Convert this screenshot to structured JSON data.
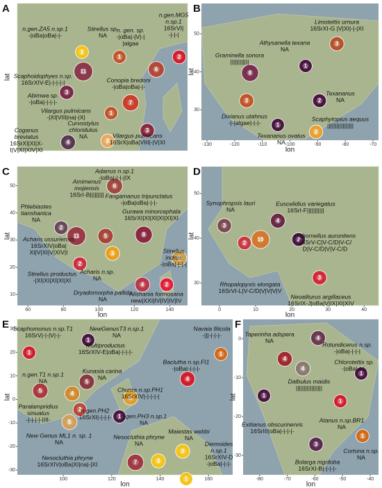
{
  "panels": [
    {
      "letter": "A",
      "y_label": "lat",
      "labels": [
        [
          "n.gen.ZA5 n.sp.1",
          "-|oBa|oBa|-|-"
        ],
        [
          "Stirellus sp.",
          "NA"
        ],
        [
          "n. gen. sp.",
          "-|oBa|-|V|-|",
          "|algae"
        ],
        [
          "n.gen.MG5",
          "n.sp.1",
          "16SrVI|",
          "-|-|-|"
        ],
        [
          "Scaphoidophyes n.sp.",
          "16SrXIV-E|-|-|-|-|"
        ],
        [
          "Conopia bredoni",
          "-|oBa|oBa|-|-"
        ],
        [
          "Abimwa sp.",
          "-|oBa|-|-|-|-"
        ],
        [
          "Vilargus pulmicans",
          "-|XI|VIII|na|-|X|"
        ],
        [
          "Curvostylus",
          "chloridulus",
          "NA"
        ],
        [
          "Coganus",
          "breviatus",
          "16SrXI|XI|X-",
          "I|V|XI|XIV|XI"
        ],
        [
          "Vilargus pulmicans",
          "16SrX|oBa|VIII|-|V|XI"
        ]
      ],
      "pies": [
        {
          "n": 1,
          "color": "#f3c51c"
        },
        {
          "n": 1,
          "color": "#c0552a"
        },
        {
          "n": 2,
          "color": "#d11f2e"
        },
        {
          "n": 11,
          "color": "#8a3a4a"
        },
        {
          "n": 6,
          "color": "#b24a3a"
        },
        {
          "n": 3,
          "color": "#7b2a4a"
        },
        {
          "n": 7,
          "color": "#c8402e"
        },
        {
          "n": 1,
          "color": "#c0552a"
        },
        {
          "n": 2,
          "color": "#e8a860"
        },
        {
          "n": 4,
          "color": "#5a3a50"
        },
        {
          "n": 3,
          "color": "#8a2a40"
        }
      ]
    },
    {
      "letter": "B",
      "x_label": "lon",
      "y_label": "lat",
      "xlim": [
        -132,
        -68
      ],
      "ylim": [
        22,
        58
      ],
      "xticks": [
        -130,
        -120,
        -110,
        -100,
        -90,
        -80,
        -70
      ],
      "yticks": [
        30,
        40,
        50
      ],
      "labels": [
        [
          "Limotettix urnura",
          "16SrXI-G |V|XI|-|-|XI"
        ],
        [
          "Athysanella texana",
          "NA"
        ],
        [
          "Graminella sonora",
          "||||||||||||"
        ],
        [
          "Texananus",
          "NA"
        ],
        [
          "Dixianus utahnus",
          "-|-|algae|-|-|-"
        ],
        [
          "Scaphytopius aequus",
          "|||||||||||||||||"
        ],
        [
          "Texananus ovatus",
          "NA"
        ]
      ],
      "pies": [
        {
          "n": 3,
          "color": "#b5532a"
        },
        {
          "n": 8,
          "color": "#7a3050"
        },
        {
          "n": 1,
          "color": "#4a1540"
        },
        {
          "n": 3,
          "color": "#c0552a"
        },
        {
          "n": 2,
          "color": "#4a1540"
        },
        {
          "n": 1,
          "color": "#4a1540"
        },
        {
          "n": 2,
          "color": "#e8a030"
        }
      ]
    },
    {
      "letter": "C",
      "x_label": "lon",
      "y_label": "lat",
      "xlim": [
        54,
        150
      ],
      "ylim": [
        6,
        57
      ],
      "xticks": [
        60,
        80,
        100,
        120,
        140
      ],
      "yticks": [
        10,
        20,
        30,
        40,
        50
      ],
      "labels": [
        [
          "Adarrus n.sp.1",
          "-|oBa|-|-|-|IX"
        ],
        [
          "Amimenus",
          "mojiensis",
          "16SrI-B|||||||||"
        ],
        [
          "Fangamanus tripunctatus",
          "-|oBa|oBa|-|-|-"
        ],
        [
          "Phlebiastes",
          "tianshanica",
          "NA"
        ],
        [
          "Gurawa minorcephala",
          "16SrXI|XI|XI|XI|XI|XI"
        ],
        [
          "Acharis ussuriensis",
          "16SrXIV|oBa|",
          "XI|V|XI|V|XIV|I"
        ],
        [
          "Stirellus",
          "indrus",
          "-|oBa|-|-|-|"
        ],
        [
          "Stirellus productus",
          "-|XI|XI|XI|XI|XI"
        ],
        [
          "Acharis n.sp.",
          "NA"
        ],
        [
          "Dryadomorpha pallida",
          "NA"
        ],
        [
          "Alishania formosana",
          "new|XXI|IV|IV|IV|IV"
        ]
      ],
      "pies": [
        {
          "n": 6,
          "color": "#a04a40"
        },
        {
          "n": 2,
          "color": "#6a4a5a"
        },
        {
          "n": 11,
          "color": "#9a3a45"
        },
        {
          "n": 5,
          "color": "#a8453a"
        },
        {
          "n": 8,
          "color": "#8a2a40"
        },
        {
          "n": 2,
          "color": "#c83040"
        },
        {
          "n": 3,
          "color": "#e8a020"
        },
        {
          "n": 4,
          "color": "#c8a050"
        },
        {
          "n": 4,
          "color": "#b83a48"
        },
        {
          "n": 2,
          "color": "#e0203a"
        }
      ]
    },
    {
      "letter": "D",
      "x_label": "lon",
      "y_label": "lat",
      "xlim": [
        -5,
        44
      ],
      "ylim": [
        25,
        56
      ],
      "xticks": [
        0,
        10,
        20,
        30,
        40
      ],
      "yticks": [
        30,
        40,
        50
      ],
      "labels": [
        [
          "Synophropsis lauri",
          "NA"
        ],
        [
          "Euscelidius variegatus",
          "16SrI-F|||||||||||"
        ],
        [
          "Osbornellus auronitens",
          "16SrV-C|V-C/D|V-C/",
          "D|V-C/D|V|V-C/D"
        ],
        [
          "Rhopalopyxis elongata",
          "16SrVI-L|V-C/D|V|V|V|V"
        ],
        [
          "Neoaliturus argillaceus",
          "16SrIX-J|oBa|V|IX|XI|XIV"
        ]
      ],
      "pies": [
        {
          "n": 3,
          "color": "#7a4a50"
        },
        {
          "n": 4,
          "color": "#6a2a45"
        },
        {
          "n": 2,
          "color": "#c83a40"
        },
        {
          "n": 10,
          "color": "#d07a30"
        },
        {
          "n": 2,
          "color": "#4a1540"
        },
        {
          "n": 3,
          "color": "#d02a38"
        }
      ]
    },
    {
      "letter": "E",
      "x_label": "lon",
      "y_label": "lat",
      "xlim": [
        81,
        170
      ],
      "ylim": [
        -32,
        34
      ],
      "xticks": [
        100,
        120,
        140,
        160
      ],
      "yticks": [
        -30,
        -20,
        -10,
        0,
        10,
        20,
        30
      ],
      "labels": [
        [
          "Scaphomonus n.sp.T1",
          "16SrV|-|-|V|-|-"
        ],
        [
          "NewGenusT3 n.sp.1",
          "NA"
        ],
        [
          "Navaia filicola",
          "-|||-|-|-|-"
        ],
        [
          "Multiproductus",
          "16SrXIV-E|oBa|-|-|-|-"
        ],
        [
          "n.gen.T1 n.sp.1",
          "NA"
        ],
        [
          "Kunasia carina",
          "NA"
        ],
        [
          "Baclutha n.sp.FI1",
          "-|oBa|-|-|-|-"
        ],
        [
          "Chunra n.sp.PH1",
          "16SrXIV|-|-|-|-|"
        ],
        [
          "Paralampridius",
          "sinuatus",
          "-|-|-|-|-|III-"
        ],
        [
          "n.gen.PH2",
          "16SrXI|-|-|-|-"
        ],
        [
          "n.gen.PH3 n.sp.1",
          "NA"
        ],
        [
          "Maiestas webbi",
          "NA"
        ],
        [
          "New Genus ML1 n. sp. 1",
          "NA"
        ],
        [
          "Nesocluthia phryne",
          "NA"
        ],
        [
          "Diemoides",
          "n.sp.1",
          "16SrXIV-D",
          "-|oBa|-|-|-"
        ],
        [
          "Nesocluthia phryne",
          "16SrXIV|oBa|XI|na|-|XI"
        ]
      ],
      "pies": [
        {
          "n": 1,
          "color": "#d11f2e"
        },
        {
          "n": 1,
          "color": "#4a1540"
        },
        {
          "n": 1,
          "color": "#d06a1a"
        },
        {
          "n": 4,
          "color": "#d11f2e"
        },
        {
          "n": 5,
          "color": "#a83a40"
        },
        {
          "n": 4,
          "color": "#d08a30"
        },
        {
          "n": 5,
          "color": "#8a3a40"
        },
        {
          "n": 4,
          "color": "#e0a030"
        },
        {
          "n": 2,
          "color": "#b84a3a"
        },
        {
          "n": 1,
          "color": "#4a1540"
        },
        {
          "n": 5,
          "color": "#d0a060"
        },
        {
          "n": 7,
          "color": "#a03a45"
        },
        {
          "n": 3,
          "color": "#f3c51c"
        },
        {
          "n": 3,
          "color": "#f3c51c"
        },
        {
          "n": 1,
          "color": "#f3c51c"
        }
      ]
    },
    {
      "letter": "F",
      "x_label": "lon",
      "y_label": "lat",
      "xlim": [
        -86,
        -37
      ],
      "ylim": [
        -35,
        5
      ],
      "xticks": [
        -80,
        -70,
        -60,
        -50,
        -40
      ],
      "yticks": [
        -30,
        -20,
        -10,
        0
      ],
      "labels": [
        [
          "Taperinha adspera",
          "NA"
        ],
        [
          "Rotundicerus n.sp.",
          "-|oBa|-|-|-|"
        ],
        [
          "Chlorotettix sp.",
          "-|oBa|-|-|-"
        ],
        [
          "Dalbulus maidis",
          "|||||||||||||||||"
        ],
        [
          "Exitianus obscurinervis",
          "16SrIII|oBa|-|-|-|-"
        ],
        [
          "Atanus n.sp.BR1",
          "NA"
        ],
        [
          "Cortona n.sp.",
          "NA"
        ],
        [
          "Bolarga nigriloba",
          "16SrXI-B|-|-|-|-"
        ]
      ],
      "pies": [
        {
          "n": 4,
          "color": "#6a3a50"
        },
        {
          "n": 4,
          "color": "#a02a30"
        },
        {
          "n": 4,
          "color": "#8a7a70"
        },
        {
          "n": 1,
          "color": "#4a1540"
        },
        {
          "n": 1,
          "color": "#4a1540"
        },
        {
          "n": 1,
          "color": "#d11f2e"
        },
        {
          "n": 1,
          "color": "#d06a1a"
        },
        {
          "n": 3,
          "color": "#5a2a50"
        }
      ]
    }
  ]
}
